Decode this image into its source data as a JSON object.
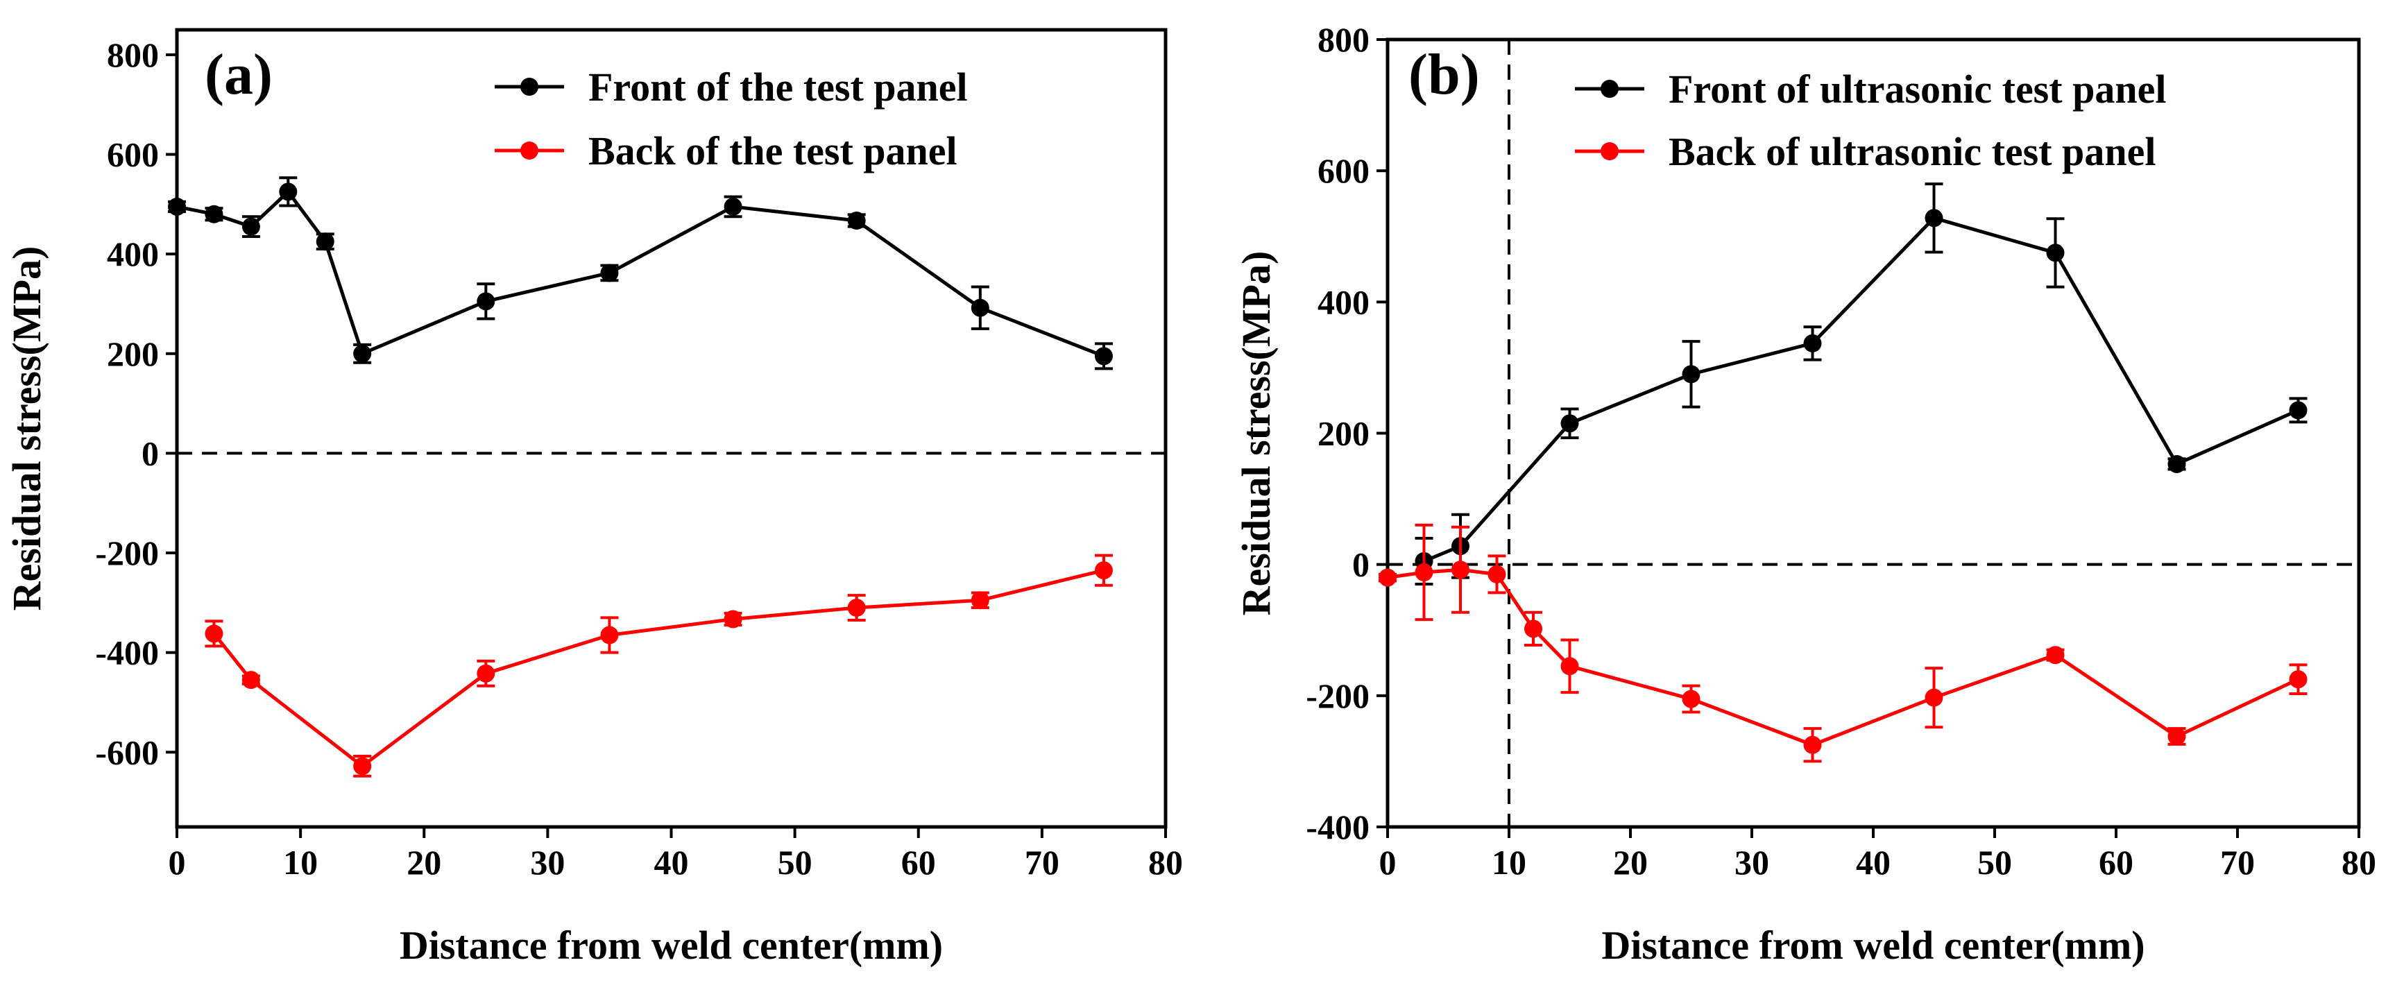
{
  "chart_data": [
    {
      "type": "line",
      "panel_label": "(a)",
      "xlabel": "Distance from weld center(mm)",
      "ylabel": "Residual stress(MPa)",
      "xlim": [
        0,
        80
      ],
      "ylim": [
        -750,
        850
      ],
      "xticks": [
        0,
        10,
        20,
        30,
        40,
        50,
        60,
        70,
        80
      ],
      "yticks": [
        -600,
        -400,
        -200,
        0,
        200,
        400,
        600,
        800
      ],
      "hline": 0,
      "legend_position": "top-right",
      "series": [
        {
          "name": "Front of the test panel",
          "color": "#000000",
          "x": [
            0,
            3,
            6,
            9,
            12,
            15,
            25,
            35,
            45,
            55,
            65,
            75
          ],
          "y": [
            495,
            480,
            455,
            525,
            425,
            200,
            305,
            362,
            495,
            467,
            292,
            195
          ],
          "err": [
            10,
            12,
            20,
            28,
            15,
            18,
            35,
            15,
            20,
            12,
            42,
            25
          ]
        },
        {
          "name": "Back of the test panel",
          "color": "#ff0000",
          "x": [
            3,
            6,
            15,
            25,
            35,
            45,
            55,
            65,
            75
          ],
          "y": [
            -362,
            -455,
            -628,
            -442,
            -365,
            -333,
            -310,
            -295,
            -235
          ],
          "err": [
            25,
            8,
            20,
            25,
            35,
            12,
            25,
            15,
            30
          ]
        }
      ]
    },
    {
      "type": "line",
      "panel_label": "(b)",
      "xlabel": "Distance from weld center(mm)",
      "ylabel": "Residual stress(MPa)",
      "xlim": [
        0,
        80
      ],
      "ylim": [
        -400,
        800
      ],
      "xticks": [
        0,
        10,
        20,
        30,
        40,
        50,
        60,
        70,
        80
      ],
      "yticks": [
        -400,
        -200,
        0,
        200,
        400,
        600,
        800
      ],
      "hline": 0,
      "vline": 10,
      "legend_position": "top-right",
      "series": [
        {
          "name": "Front of ultrasonic test panel",
          "color": "#000000",
          "x": [
            3,
            6,
            15,
            25,
            35,
            45,
            55,
            65,
            75
          ],
          "y": [
            5,
            28,
            215,
            290,
            337,
            528,
            475,
            153,
            235
          ],
          "err": [
            35,
            48,
            22,
            50,
            25,
            52,
            52,
            8,
            18
          ]
        },
        {
          "name": "Back of ultrasonic test panel",
          "color": "#ff0000",
          "x": [
            0,
            3,
            6,
            9,
            12,
            15,
            25,
            35,
            45,
            55,
            65,
            75
          ],
          "y": [
            -20,
            -12,
            -8,
            -15,
            -98,
            -155,
            -205,
            -275,
            -203,
            -138,
            -262,
            -175
          ],
          "err": [
            5,
            72,
            65,
            28,
            25,
            40,
            20,
            25,
            45,
            8,
            12,
            22
          ]
        }
      ]
    }
  ]
}
